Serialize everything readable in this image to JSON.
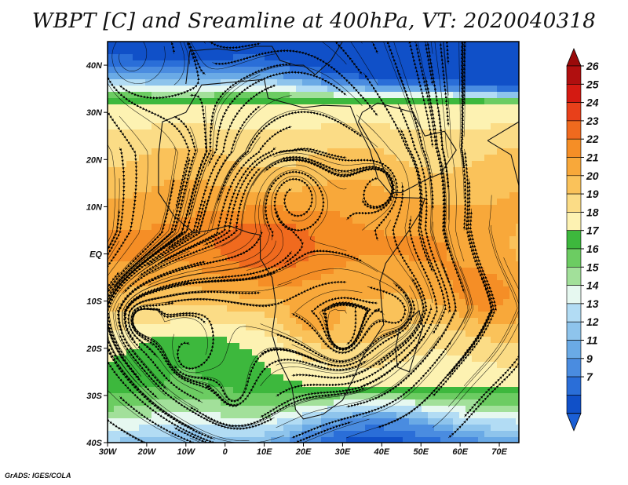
{
  "title": "WBPT [C] and Sreamline at 400hPa, VT: 2020040318",
  "credit": "GrADS: IGES/COLA",
  "map": {
    "lon_ticks": [
      "30W",
      "20W",
      "10W",
      "0",
      "10E",
      "20E",
      "30E",
      "40E",
      "50E",
      "60E",
      "70E"
    ],
    "lat_ticks": [
      "40N",
      "30N",
      "20N",
      "10N",
      "EQ",
      "10S",
      "20S",
      "30S",
      "40S"
    ],
    "lon_range": [
      -30,
      75
    ],
    "lat_range": [
      -40,
      45
    ]
  },
  "colorbar": {
    "labels": [
      "26",
      "25",
      "24",
      "23",
      "22",
      "21",
      "20",
      "19",
      "18",
      "17",
      "16",
      "15",
      "14",
      "13",
      "12",
      "11",
      "9",
      "7"
    ],
    "colors": [
      "#b00f0f",
      "#d41a12",
      "#e8401a",
      "#f06a1e",
      "#f58e26",
      "#f8a83a",
      "#fac25a",
      "#fbdc86",
      "#fdf2b2",
      "#3db83d",
      "#6ccc62",
      "#a2e09a",
      "#e6f8f0",
      "#b2dcf4",
      "#8ec4ec",
      "#6aaae6",
      "#4a8ce0",
      "#2a6ed8",
      "#1050c8"
    ],
    "upper_arrow_color": "#9a0a0a",
    "lower_arrow_color": "#1a5fd6"
  }
}
